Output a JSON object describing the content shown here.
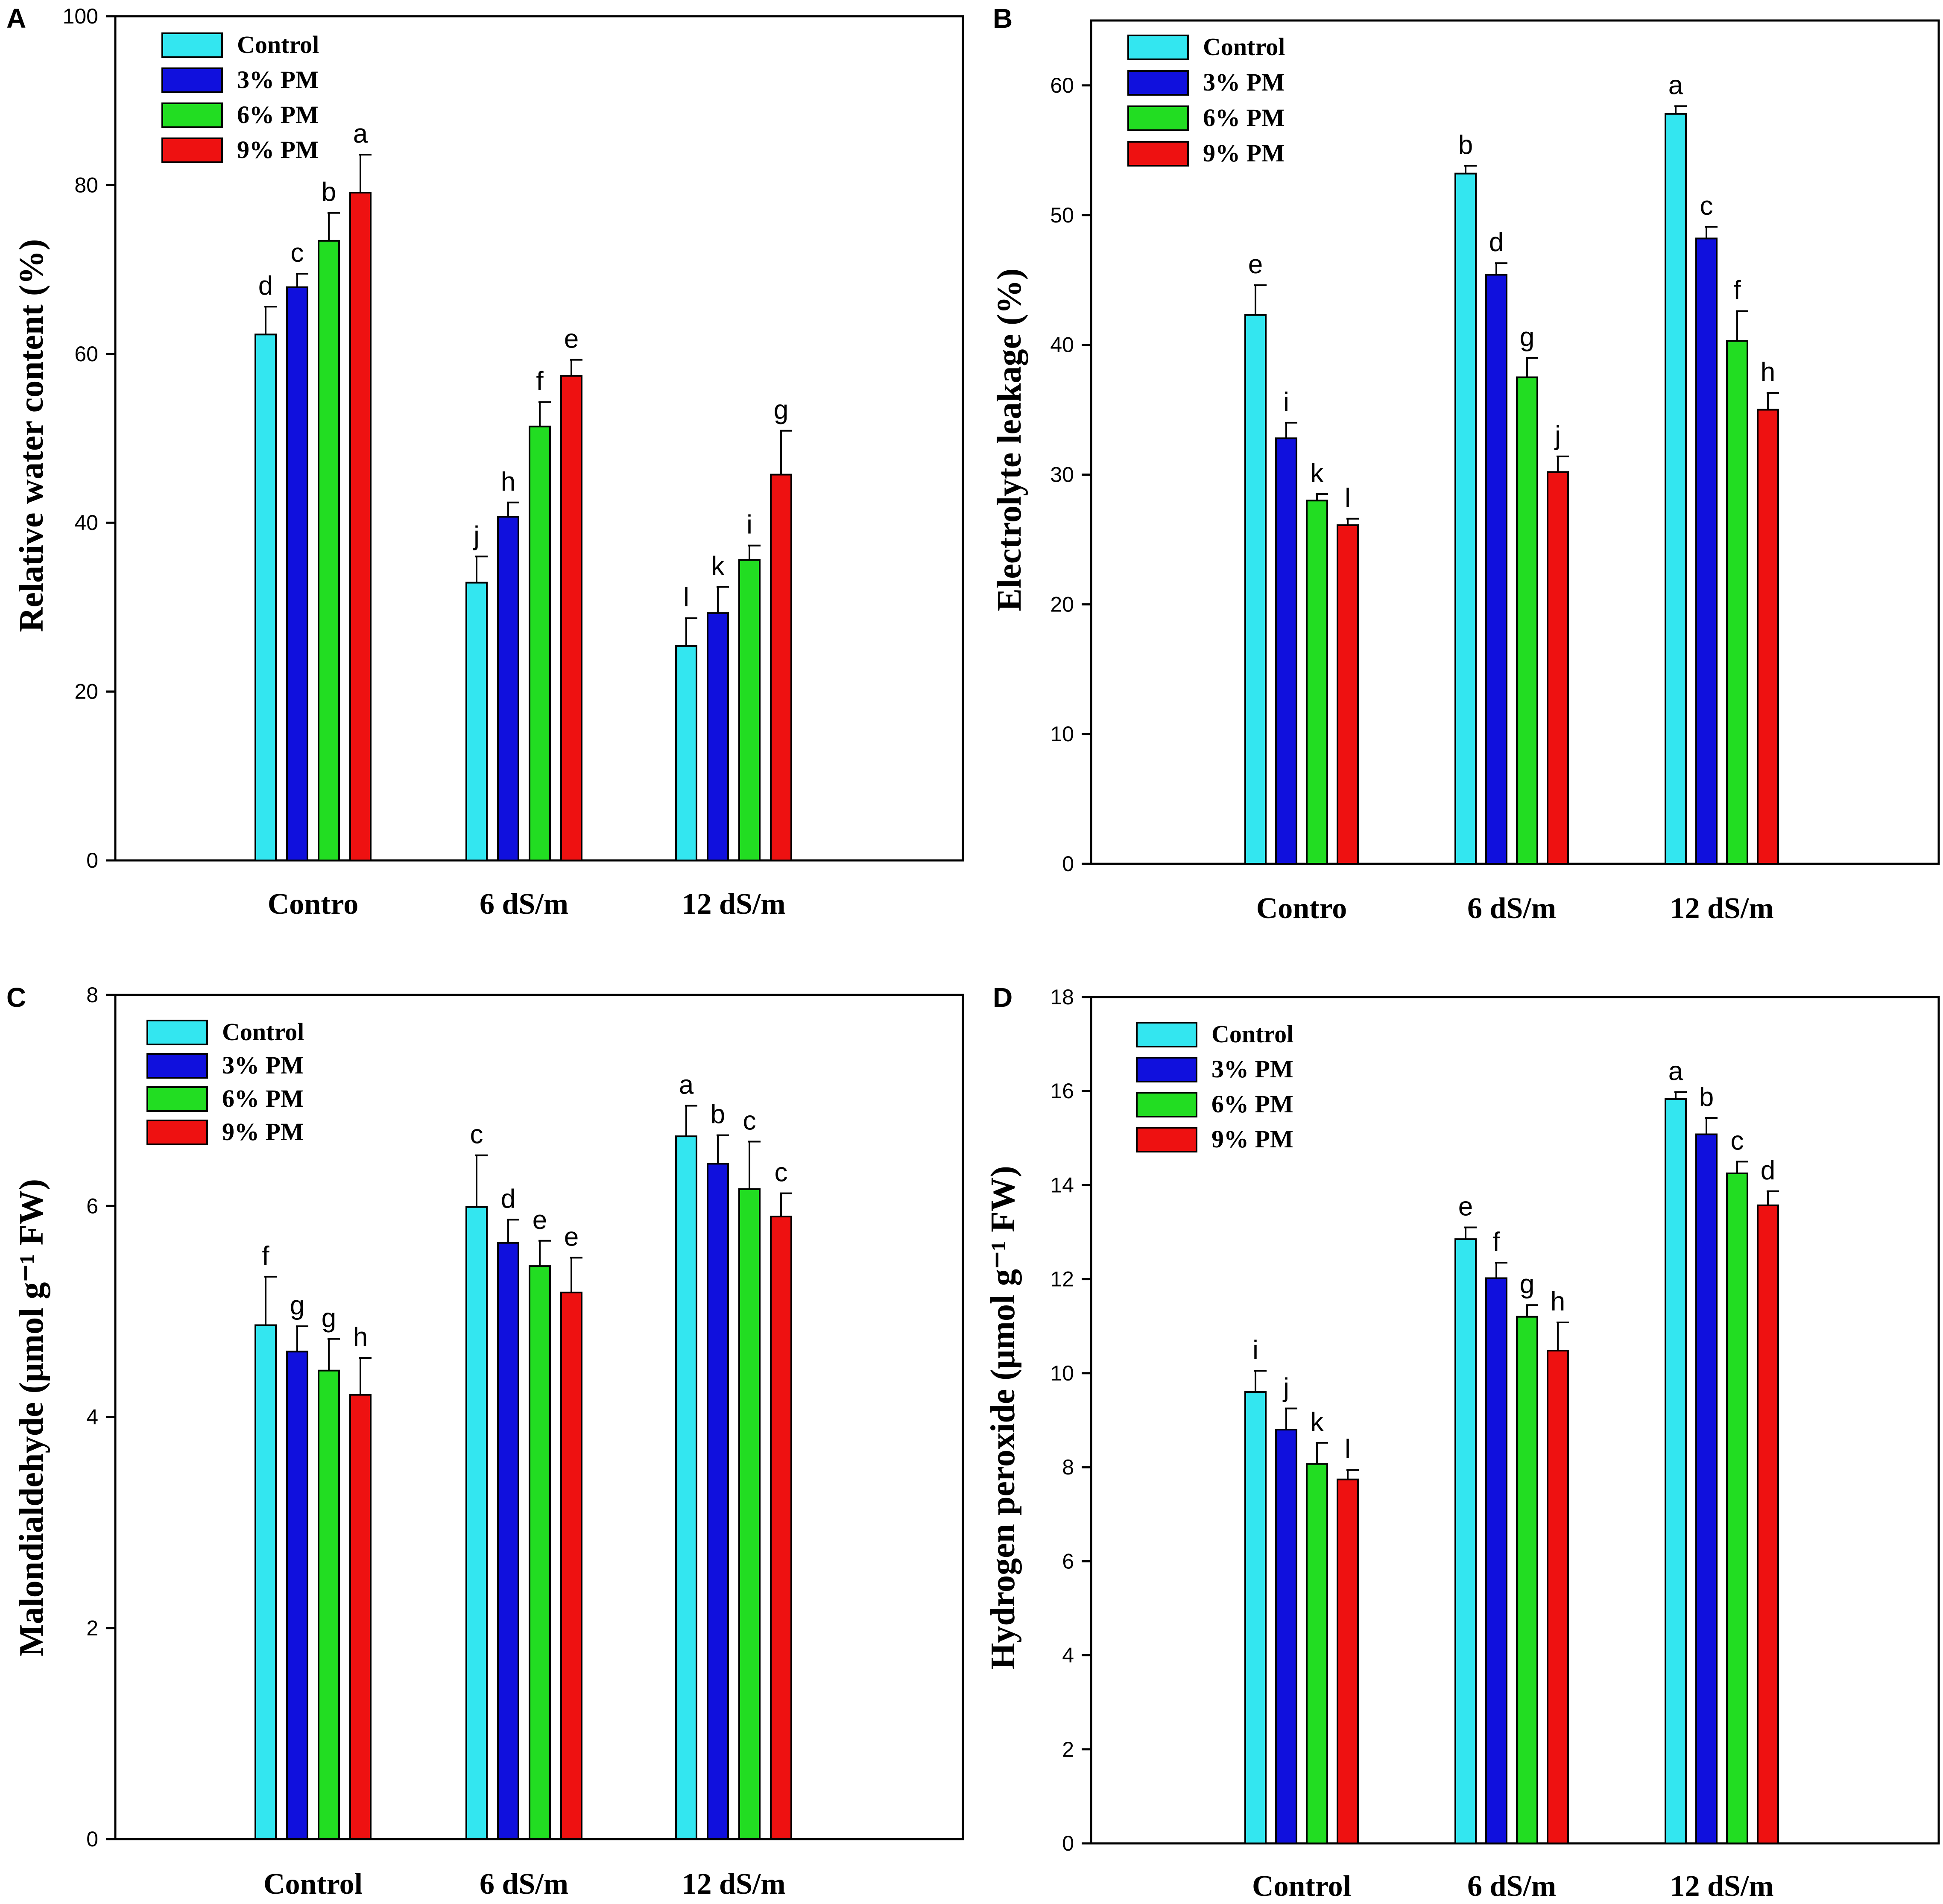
{
  "figure": {
    "legend_entries": [
      "Control",
      "3% PM",
      "6% PM",
      "9% PM"
    ],
    "series_colors": [
      "#33e6f0",
      "#1010dd",
      "#22dd22",
      "#ee1111"
    ]
  },
  "chart_data": [
    {
      "type": "bar",
      "panel": "A",
      "ylabel": "Relative water content (%)",
      "ylim": [
        0,
        100
      ],
      "yticks": [
        0,
        20,
        40,
        60,
        80,
        100
      ],
      "categories": [
        "Contro",
        "6 dS/m",
        "12 dS/m"
      ],
      "series": [
        {
          "name": "Control",
          "values": [
            62.3,
            32.9,
            25.4
          ],
          "errors": [
            3.3,
            3.1,
            3.3
          ],
          "letters": [
            "d",
            "j",
            "l"
          ]
        },
        {
          "name": "3% PM",
          "values": [
            67.9,
            40.7,
            29.3
          ],
          "errors": [
            1.6,
            1.7,
            3.1
          ],
          "letters": [
            "c",
            "h",
            "k"
          ]
        },
        {
          "name": "6% PM",
          "values": [
            73.4,
            51.4,
            35.6
          ],
          "errors": [
            3.3,
            2.9,
            1.7
          ],
          "letters": [
            "b",
            "f",
            "i"
          ]
        },
        {
          "name": "9% PM",
          "values": [
            79.1,
            57.4,
            45.7
          ],
          "errors": [
            4.5,
            1.9,
            5.2
          ],
          "letters": [
            "a",
            "e",
            "g"
          ]
        }
      ]
    },
    {
      "type": "bar",
      "panel": "B",
      "ylabel": "Electrolyte leakage (%)",
      "ylim": [
        0,
        65
      ],
      "yticks": [
        0,
        10,
        20,
        30,
        40,
        50,
        60
      ],
      "categories": [
        "Contro",
        "6 dS/m",
        "12 dS/m"
      ],
      "series": [
        {
          "name": "Control",
          "values": [
            42.3,
            53.2,
            57.8
          ],
          "errors": [
            2.3,
            0.6,
            0.6
          ],
          "letters": [
            "e",
            "b",
            "a"
          ]
        },
        {
          "name": "3% PM",
          "values": [
            32.8,
            45.4,
            48.2
          ],
          "errors": [
            1.2,
            0.9,
            0.9
          ],
          "letters": [
            "i",
            "d",
            "c"
          ]
        },
        {
          "name": "6% PM",
          "values": [
            28.0,
            37.5,
            40.3
          ],
          "errors": [
            0.5,
            1.5,
            2.3
          ],
          "letters": [
            "k",
            "g",
            "f"
          ]
        },
        {
          "name": "9% PM",
          "values": [
            26.1,
            30.2,
            35.0
          ],
          "errors": [
            0.5,
            1.2,
            1.3
          ],
          "letters": [
            "l",
            "j",
            "h"
          ]
        }
      ]
    },
    {
      "type": "bar",
      "panel": "C",
      "ylabel": "Malondialdehyde (μmol g⁻¹ FW)",
      "ylim": [
        0,
        8
      ],
      "yticks": [
        0,
        2,
        4,
        6,
        8
      ],
      "categories": [
        "Control",
        "6 dS/m",
        "12 dS/m"
      ],
      "series": [
        {
          "name": "Control",
          "values": [
            4.87,
            5.99,
            6.66
          ],
          "errors": [
            0.46,
            0.49,
            0.29
          ],
          "letters": [
            "f",
            "c",
            "a"
          ]
        },
        {
          "name": "3% PM",
          "values": [
            4.62,
            5.65,
            6.4
          ],
          "errors": [
            0.24,
            0.22,
            0.27
          ],
          "letters": [
            "g",
            "d",
            "b"
          ]
        },
        {
          "name": "6% PM",
          "values": [
            4.44,
            5.43,
            6.16
          ],
          "errors": [
            0.3,
            0.24,
            0.45
          ],
          "letters": [
            "g",
            "e",
            "c"
          ]
        },
        {
          "name": "9% PM",
          "values": [
            4.21,
            5.18,
            5.9
          ],
          "errors": [
            0.35,
            0.33,
            0.22
          ],
          "letters": [
            "h",
            "e",
            "c"
          ]
        }
      ]
    },
    {
      "type": "bar",
      "panel": "D",
      "ylabel": "Hydrogen peroxide (μmol g⁻¹ FW)",
      "ylim": [
        0,
        18
      ],
      "yticks": [
        0,
        2,
        4,
        6,
        8,
        10,
        12,
        14,
        16,
        18
      ],
      "categories": [
        "Control",
        "6 dS/m",
        "12 dS/m"
      ],
      "series": [
        {
          "name": "Control",
          "values": [
            9.6,
            12.85,
            15.83
          ],
          "errors": [
            0.45,
            0.25,
            0.15
          ],
          "letters": [
            "i",
            "e",
            "a"
          ]
        },
        {
          "name": "3% PM",
          "values": [
            8.8,
            12.02,
            15.08
          ],
          "errors": [
            0.45,
            0.33,
            0.35
          ],
          "letters": [
            "j",
            "f",
            "b"
          ]
        },
        {
          "name": "6% PM",
          "values": [
            8.07,
            11.2,
            14.25
          ],
          "errors": [
            0.45,
            0.25,
            0.25
          ],
          "letters": [
            "k",
            "g",
            "c"
          ]
        },
        {
          "name": "9% PM",
          "values": [
            7.74,
            10.48,
            13.57
          ],
          "errors": [
            0.2,
            0.6,
            0.3
          ],
          "letters": [
            "l",
            "h",
            "d"
          ]
        }
      ]
    }
  ]
}
